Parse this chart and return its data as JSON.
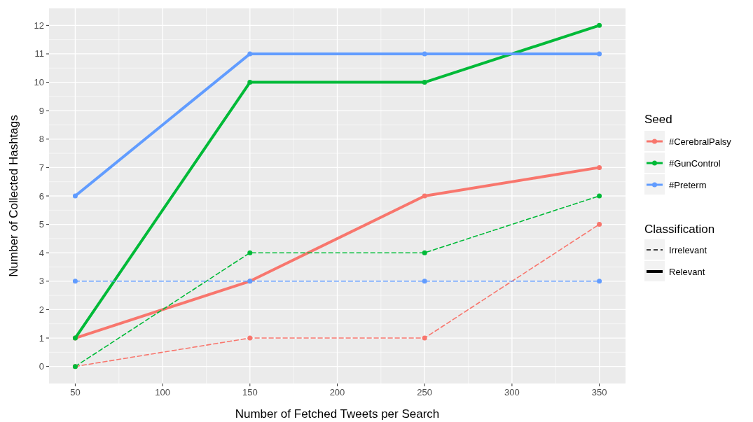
{
  "chart_data": {
    "type": "line",
    "xlabel": "Number of Fetched Tweets per Search",
    "ylabel": "Number of Collected Hashtags",
    "legend_title": "Seed",
    "annotations": [
      "Classification",
      "Irrelevant",
      "Relevant"
    ],
    "x": [
      50,
      150,
      250,
      350
    ],
    "xlim": [
      35,
      365
    ],
    "xticks": [
      50,
      100,
      150,
      200,
      250,
      300,
      350
    ],
    "ylim": [
      -0.6,
      12.6
    ],
    "yticks": [
      0,
      1,
      2,
      3,
      4,
      5,
      6,
      7,
      8,
      9,
      10,
      11,
      12
    ],
    "grid": true,
    "legend": "right",
    "marker": "circle",
    "series": [
      {
        "name": "#CerebralPalsy",
        "color": "#f8766d",
        "line_style": "dashed",
        "values": [
          0,
          1,
          1,
          5
        ]
      },
      {
        "color": "#f8766d",
        "line_style": "solid",
        "values": [
          1,
          3,
          6,
          7
        ]
      },
      {
        "name": "#GunControl",
        "color": "#00ba38",
        "line_style": "dashed",
        "values": [
          0,
          4,
          4,
          6
        ]
      },
      {
        "color": "#00ba38",
        "line_style": "solid",
        "values": [
          1,
          10,
          10,
          12
        ]
      },
      {
        "name": "#Preterm",
        "color": "#619cff",
        "line_style": "dashed",
        "values": [
          3,
          3,
          3,
          3
        ]
      },
      {
        "color": "#619cff",
        "line_style": "solid",
        "values": [
          6,
          11,
          11,
          11
        ]
      }
    ]
  }
}
